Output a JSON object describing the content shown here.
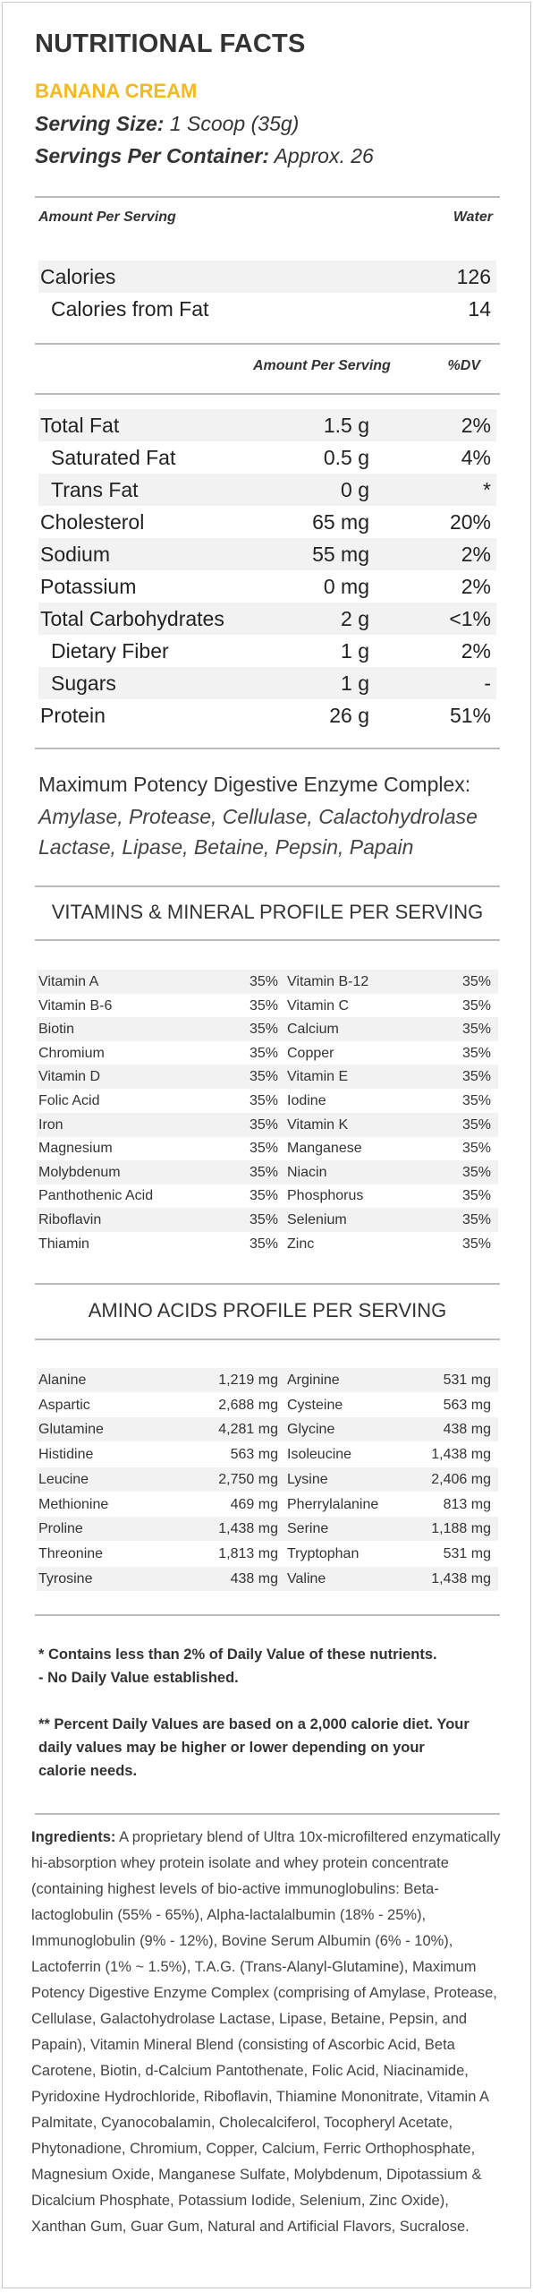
{
  "header": {
    "title": "NUTRITIONAL FACTS",
    "flavor": "BANANA CREAM",
    "serving_size_label": "Serving Size:",
    "serving_size_value": "1 Scoop (35g)",
    "servings_label": "Servings Per Container:",
    "servings_value": "Approx. 26"
  },
  "top_table": {
    "col_left": "Amount Per Serving",
    "col_right": "Water",
    "rows": [
      {
        "name": "Calories",
        "value": "126"
      },
      {
        "name": "Calories from Fat",
        "value": "14"
      }
    ]
  },
  "dv_table": {
    "col_amount": "Amount Per Serving",
    "col_dv": "%DV",
    "rows": [
      {
        "name": "Total Fat",
        "amount": "1.5 g",
        "dv": "2%"
      },
      {
        "name": "Saturated Fat",
        "amount": "0.5 g",
        "dv": "4%"
      },
      {
        "name": "Trans Fat",
        "amount": "0 g",
        "dv": "*"
      },
      {
        "name": "Cholesterol",
        "amount": "65 mg",
        "dv": "20%"
      },
      {
        "name": "Sodium",
        "amount": "55 mg",
        "dv": "2%"
      },
      {
        "name": "Potassium",
        "amount": "0 mg",
        "dv": "2%"
      },
      {
        "name": "Total Carbohydrates",
        "amount": "2 g",
        "dv": "<1%"
      },
      {
        "name": "Dietary Fiber",
        "amount": "1 g",
        "dv": "2%"
      },
      {
        "name": "Sugars",
        "amount": "1 g",
        "dv": "-"
      },
      {
        "name": "Protein",
        "amount": "26 g",
        "dv": "51%"
      }
    ]
  },
  "enzyme": {
    "title": "Maximum Potency Digestive Enzyme Complex:",
    "line1": "Amylase, Protease, Cellulase, Calactohydrolase",
    "line2": "Lactase, Lipase, Betaine, Pepsin, Papain"
  },
  "vitamins": {
    "title": "VITAMINS & MINERAL PROFILE PER SERVING",
    "rows": [
      [
        "Vitamin A",
        "35%",
        "Vitamin B-12",
        "35%"
      ],
      [
        "Vitamin B-6",
        "35%",
        "Vitamin C",
        "35%"
      ],
      [
        "Biotin",
        "35%",
        "Calcium",
        "35%"
      ],
      [
        "Chromium",
        "35%",
        "Copper",
        "35%"
      ],
      [
        "Vitamin D",
        "35%",
        "Vitamin E",
        "35%"
      ],
      [
        "Folic Acid",
        "35%",
        "Iodine",
        "35%"
      ],
      [
        "Iron",
        "35%",
        "Vitamin K",
        "35%"
      ],
      [
        "Magnesium",
        "35%",
        "Manganese",
        "35%"
      ],
      [
        "Molybdenum",
        "35%",
        "Niacin",
        "35%"
      ],
      [
        "Panthothenic Acid",
        "35%",
        "Phosphorus",
        "35%"
      ],
      [
        "Riboflavin",
        "35%",
        "Selenium",
        "35%"
      ],
      [
        "Thiamin",
        "35%",
        "Zinc",
        "35%"
      ]
    ]
  },
  "amino": {
    "title": "AMINO ACIDS PROFILE PER SERVING",
    "rows": [
      [
        "Alanine",
        "1,219 mg",
        "Arginine",
        "531 mg"
      ],
      [
        "Aspartic",
        "2,688 mg",
        "Cysteine",
        "563 mg"
      ],
      [
        "Glutamine",
        "4,281 mg",
        "Glycine",
        "438 mg"
      ],
      [
        "Histidine",
        "563 mg",
        "Isoleucine",
        "1,438 mg"
      ],
      [
        "Leucine",
        "2,750 mg",
        "Lysine",
        "2,406 mg"
      ],
      [
        "Methionine",
        "469 mg",
        "Pherrylalanine",
        "813 mg"
      ],
      [
        "Proline",
        "1,438 mg",
        "Serine",
        "1,188 mg"
      ],
      [
        "Threonine",
        "1,813 mg",
        "Tryptophan",
        "531 mg"
      ],
      [
        "Tyrosine",
        "438 mg",
        "Valine",
        "1,438 mg"
      ]
    ]
  },
  "notes": {
    "note1_line1": "* Contains less than 2% of Daily Value of these nutrients.",
    "note1_line2": "- No Daily Value established.",
    "note2_line1": "** Percent Daily Values are based on a 2,000 calorie diet. Your",
    "note2_line2": "daily values may be higher or lower depending on your",
    "note2_line3": "calorie needs."
  },
  "ingredients": {
    "label": "Ingredients:",
    "text": "A proprietary blend of Ultra 10x-microfiltered enzymatically hi-absorption whey protein isolate and whey protein concentrate (containing highest levels of bio-active immunoglobulins: Beta-lactoglobulin (55% - 65%), Alpha-lactalalbumin (18% - 25%), Immunoglobulin (9% - 12%), Bovine Serum Albumin (6% - 10%), Lactoferrin (1% ~ 1.5%), T.A.G. (Trans-Alanyl-Glutamine), Maximum Potency Digestive Enzyme Complex (comprising of Amylase, Protease, Cellulase, Galactohydrolase Lactase, Lipase, Betaine, Pepsin, and Papain), Vitamin Mineral Blend (consisting of Ascorbic Acid, Beta Carotene, Biotin, d-Calcium Pantothenate, Folic Acid, Niacinamide, Pyridoxine Hydrochloride, Riboflavin, Thiamine Mononitrate, Vitamin A Palmitate, Cyanocobalamin, Cholecalciferol, Tocopheryl Acetate, Phytonadione, Chromium, Copper, Calcium, Ferric Orthophosphate, Magnesium Oxide, Manganese Sulfate, Molybdenum, Dipotassium & Dicalcium Phosphate, Potassium Iodide, Selenium, Zinc Oxide), Xanthan Gum, Guar Gum, Natural and Artificial Flavors, Sucralose."
  },
  "colors": {
    "flavor": "#f3b91f",
    "shade": "#f2f2f2",
    "rule": "#bbbbbb"
  }
}
